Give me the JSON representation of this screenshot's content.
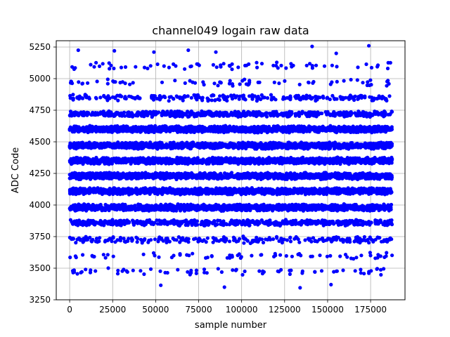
{
  "chart_data": {
    "type": "scatter",
    "title": "channel049 logain raw data",
    "xlabel": "sample number",
    "ylabel": "ADC Code",
    "xlim": [
      -7800,
      195000
    ],
    "ylim": [
      3250,
      5300
    ],
    "x_ticks": [
      0,
      25000,
      50000,
      75000,
      100000,
      125000,
      150000,
      175000
    ],
    "y_ticks": [
      3250,
      3500,
      3750,
      4000,
      4250,
      4500,
      4750,
      5000,
      5250
    ],
    "grid": true,
    "legend": "none",
    "marker_color": "#0000ff",
    "sample_range": [
      0,
      187500
    ],
    "series": [
      {
        "bands": [
          {
            "y": 3475,
            "density": "sparse"
          },
          {
            "y": 3600,
            "density": "sparse"
          },
          {
            "y": 3725,
            "density": "medium"
          },
          {
            "y": 3860,
            "density": "dense"
          },
          {
            "y": 3980,
            "density": "solid"
          },
          {
            "y": 4110,
            "density": "solid"
          },
          {
            "y": 4230,
            "density": "solid"
          },
          {
            "y": 4350,
            "density": "solid"
          },
          {
            "y": 4470,
            "density": "solid"
          },
          {
            "y": 4600,
            "density": "solid"
          },
          {
            "y": 4720,
            "density": "dense"
          },
          {
            "y": 4850,
            "density": "medium"
          },
          {
            "y": 4970,
            "density": "sparse"
          },
          {
            "y": 5100,
            "density": "sparse"
          }
        ],
        "outliers": [
          {
            "x": 5000,
            "y": 5225
          },
          {
            "x": 26000,
            "y": 5220
          },
          {
            "x": 49000,
            "y": 5210
          },
          {
            "x": 69000,
            "y": 5225
          },
          {
            "x": 85000,
            "y": 5210
          },
          {
            "x": 141000,
            "y": 5255
          },
          {
            "x": 155000,
            "y": 5200
          },
          {
            "x": 174000,
            "y": 5260
          },
          {
            "x": 53000,
            "y": 3365
          },
          {
            "x": 90000,
            "y": 3350
          },
          {
            "x": 134000,
            "y": 3345
          },
          {
            "x": 152000,
            "y": 3370
          },
          {
            "x": 2000,
            "y": 3465
          },
          {
            "x": 113000,
            "y": 3470
          },
          {
            "x": 174000,
            "y": 3460
          }
        ]
      }
    ]
  }
}
